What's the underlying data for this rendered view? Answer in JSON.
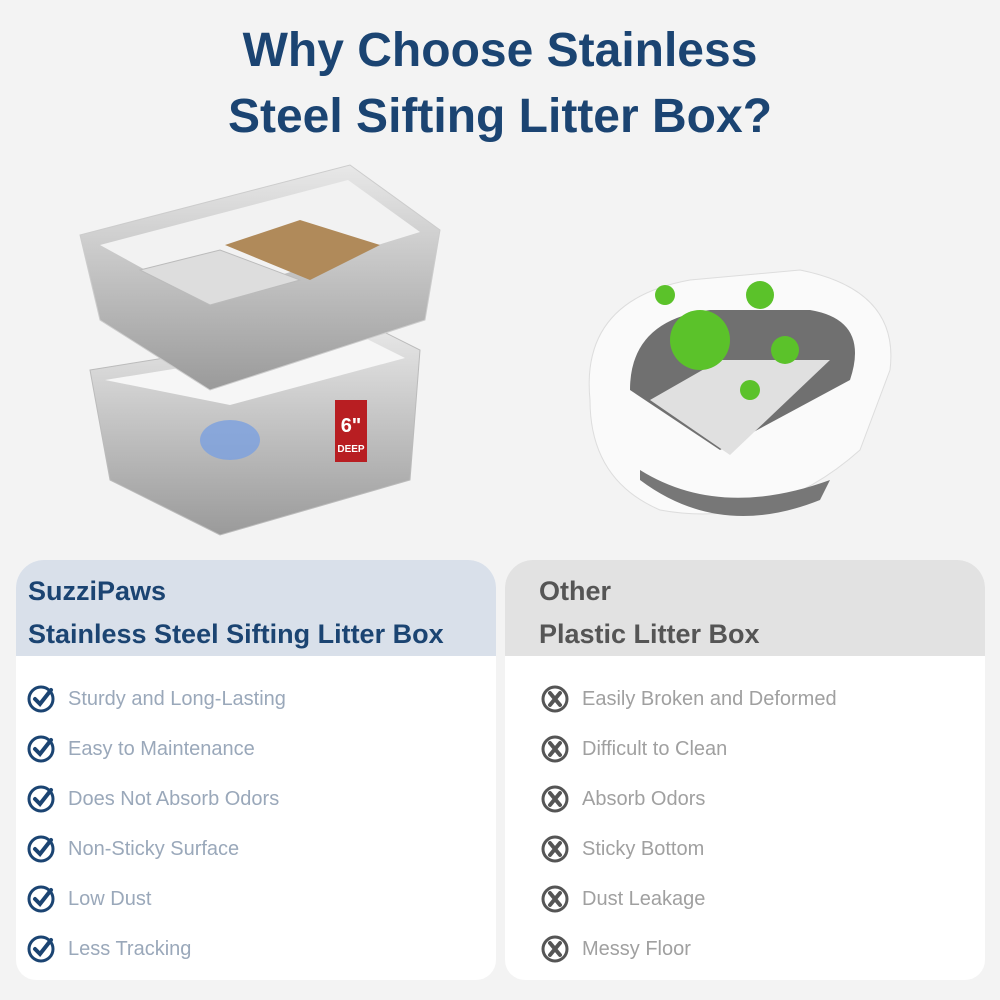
{
  "title": {
    "line1": "Why Choose Stainless",
    "line2": "Steel Sifting Litter Box?"
  },
  "product_badge": {
    "size": "6\"",
    "label": "DEEP"
  },
  "colors": {
    "title": "#1b4472",
    "left_header_bg": "#d9e0ea",
    "right_header_bg": "#e2e2e2",
    "check_icon": "#1b4472",
    "cross_icon": "#555555"
  },
  "left": {
    "brand": "SuzziPaws",
    "product": "Stainless Steel Sifting Litter Box",
    "icon": "check-circle-icon",
    "items": [
      "Sturdy and Long-Lasting",
      "Easy to Maintenance",
      "Does Not Absorb Odors",
      "Non-Sticky Surface",
      "Low Dust",
      "Less Tracking"
    ]
  },
  "right": {
    "brand": "Other",
    "product": "Plastic Litter Box",
    "icon": "x-circle-icon",
    "items": [
      "Easily Broken and Deformed",
      "Difficult to Clean",
      "Absorb Odors",
      "Sticky Bottom",
      "Dust Leakage",
      "Messy Floor"
    ]
  }
}
